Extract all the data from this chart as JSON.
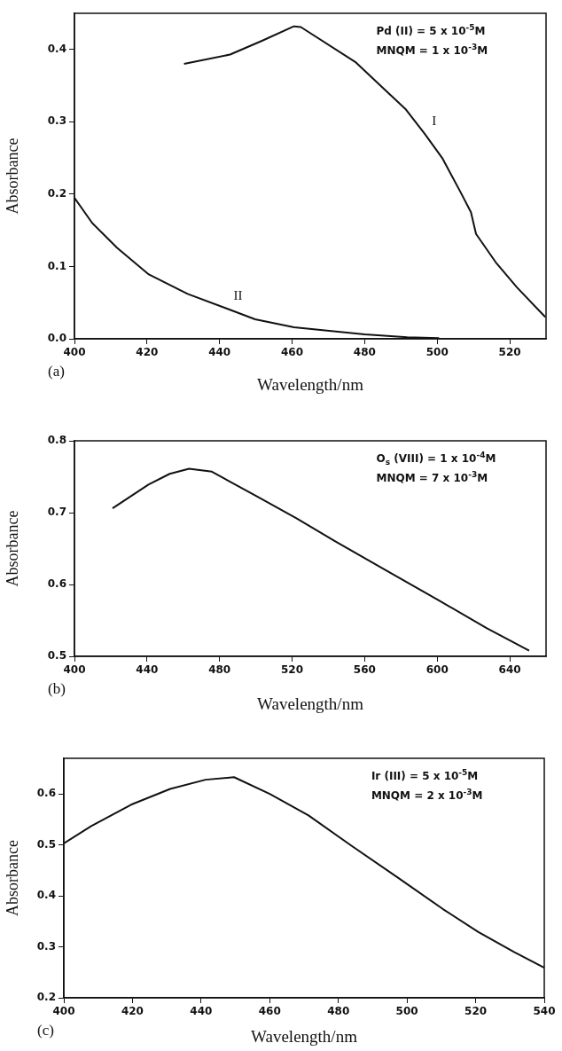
{
  "chart_data": [
    {
      "type": "line",
      "title": "(a)",
      "xlabel": "Wavelength/nm",
      "ylabel": "Absorbance",
      "xlim": [
        400,
        530
      ],
      "ylim": [
        0,
        0.45
      ],
      "xticks": [
        400,
        420,
        440,
        460,
        480,
        500,
        520
      ],
      "yticks": [
        {
          "value": 0,
          "label": "0.0"
        },
        0.1,
        0.2,
        0.3,
        0.4
      ],
      "grid": false,
      "legend": false,
      "marker": "none",
      "line_style": "solid",
      "annotations": [
        "Pd (II) = 5 x 10$^{-5}$M",
        "MNQM = 1 x 10$^{-3}$M"
      ],
      "series": [
        {
          "name": "I",
          "color": "#111111",
          "x": [
            430.2,
            442.9,
            451.7,
            460.5,
            462.4,
            477.6,
            485,
            491.2,
            496.6,
            501.5,
            506.3,
            509.3,
            510.7,
            516.1,
            522,
            529.8
          ],
          "values": [
            0.38,
            0.393,
            0.412,
            0.432,
            0.431,
            0.382,
            0.347,
            0.318,
            0.283,
            0.249,
            0.204,
            0.175,
            0.145,
            0.106,
            0.071,
            0.03
          ]
        },
        {
          "name": "II",
          "color": "#111111",
          "x": [
            400,
            404.9,
            411.7,
            420.5,
            431.2,
            441.9,
            449.8,
            460.5,
            480,
            491.7,
            500.5
          ],
          "values": [
            0.195,
            0.16,
            0.126,
            0.089,
            0.062,
            0.042,
            0.027,
            0.016,
            0.006,
            0.002,
            0.001
          ]
        }
      ]
    },
    {
      "type": "line",
      "title": "(b)",
      "xlabel": "Wavelength/nm",
      "ylabel": "Absorbance",
      "xlim": [
        400,
        660
      ],
      "ylim": [
        0.5,
        0.8
      ],
      "xticks": [
        400,
        440,
        480,
        520,
        560,
        600,
        640
      ],
      "yticks": [
        0.5,
        0.6,
        0.7,
        0.8
      ],
      "grid": false,
      "legend": false,
      "marker": "none",
      "line_style": "solid",
      "annotations": [
        "O$_{s}$ (VIII) = 1 x 10$^{-4}$M",
        "MNQM = 7 x 10$^{-3}$M"
      ],
      "series": [
        {
          "color": "#111111",
          "x": [
            421,
            440.8,
            452.5,
            463.2,
            475.8,
            501,
            522.4,
            543.8,
            572.9,
            600.2,
            627.4,
            650.7
          ],
          "values": [
            0.706,
            0.739,
            0.754,
            0.761,
            0.757,
            0.722,
            0.692,
            0.66,
            0.618,
            0.579,
            0.539,
            0.508
          ]
        }
      ]
    },
    {
      "type": "line",
      "title": "(c)",
      "xlabel": "Wavelength/nm",
      "ylabel": "Absorbance",
      "xlim": [
        400,
        540
      ],
      "ylim": [
        0.2,
        0.67
      ],
      "xticks": [
        400,
        420,
        440,
        460,
        480,
        500,
        520,
        540
      ],
      "yticks": [
        0.2,
        0.3,
        0.4,
        0.5,
        0.6
      ],
      "grid": false,
      "legend": false,
      "marker": "none",
      "line_style": "solid",
      "annotations": [
        "Ir (III) = 5 x 10$^{-5}$M",
        "MNQM = 2 x 10$^{-3}$M"
      ],
      "series": [
        {
          "color": "#111111",
          "x": [
            400,
            408,
            419.6,
            431,
            441.3,
            449.6,
            460,
            471.3,
            483.7,
            497.1,
            510.5,
            520.8,
            531.2,
            540
          ],
          "values": [
            0.503,
            0.537,
            0.579,
            0.61,
            0.628,
            0.633,
            0.6,
            0.558,
            0.499,
            0.437,
            0.374,
            0.329,
            0.29,
            0.259
          ]
        }
      ]
    }
  ]
}
